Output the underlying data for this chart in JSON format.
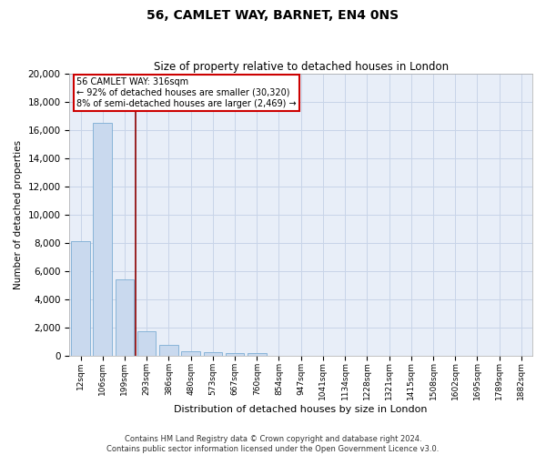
{
  "title": "56, CAMLET WAY, BARNET, EN4 0NS",
  "subtitle": "Size of property relative to detached houses in London",
  "xlabel": "Distribution of detached houses by size in London",
  "ylabel": "Number of detached properties",
  "categories": [
    "12sqm",
    "106sqm",
    "199sqm",
    "293sqm",
    "386sqm",
    "480sqm",
    "573sqm",
    "667sqm",
    "760sqm",
    "854sqm",
    "947sqm",
    "1041sqm",
    "1134sqm",
    "1228sqm",
    "1321sqm",
    "1415sqm",
    "1508sqm",
    "1602sqm",
    "1695sqm",
    "1789sqm",
    "1882sqm"
  ],
  "values": [
    8100,
    16500,
    5400,
    1750,
    750,
    330,
    260,
    220,
    190,
    0,
    0,
    0,
    0,
    0,
    0,
    0,
    0,
    0,
    0,
    0,
    0
  ],
  "bar_color": "#c9d9ee",
  "bar_edge_color": "#7badd4",
  "vline_color": "#8b0000",
  "vline_x": 2.5,
  "annotation_line1": "56 CAMLET WAY: 316sqm",
  "annotation_line2": "← 92% of detached houses are smaller (30,320)",
  "annotation_line3": "8% of semi-detached houses are larger (2,469) →",
  "annotation_box_color": "#ffffff",
  "annotation_box_edge": "#cc0000",
  "grid_color": "#c8d4e8",
  "bg_color": "#e8eef8",
  "footer_line1": "Contains HM Land Registry data © Crown copyright and database right 2024.",
  "footer_line2": "Contains public sector information licensed under the Open Government Licence v3.0.",
  "ylim": [
    0,
    20000
  ],
  "yticks": [
    0,
    2000,
    4000,
    6000,
    8000,
    10000,
    12000,
    14000,
    16000,
    18000,
    20000
  ]
}
